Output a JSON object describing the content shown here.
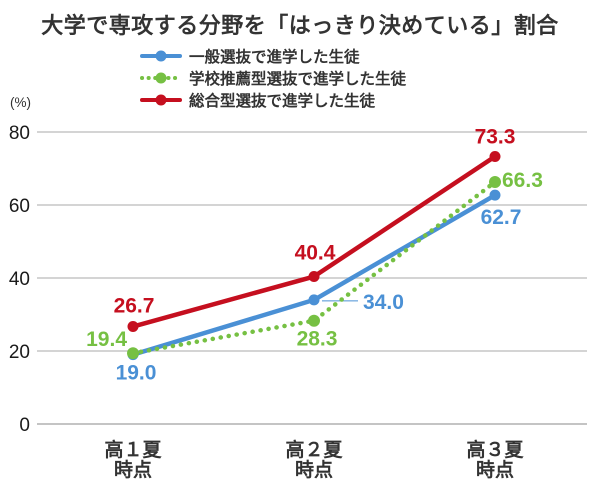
{
  "title": "大学で専攻する分野を「はっきり決めている」割合",
  "y_unit_label": "(%)",
  "chart_data": {
    "type": "line",
    "title": "大学で専攻する分野を「はっきり決めている」割合",
    "categories": [
      [
        "高１夏",
        "時点"
      ],
      [
        "高２夏",
        "時点"
      ],
      [
        "高３夏",
        "時点"
      ]
    ],
    "ylim": [
      0,
      80
    ],
    "yticks": [
      0,
      20,
      40,
      60,
      80
    ],
    "y_unit": "(%)",
    "grid": true,
    "legend_position": "top-center",
    "series": [
      {
        "name": "一般選抜で進学した生徒",
        "color": "#4a90d5",
        "line_style": "solid",
        "values": [
          19.0,
          34.0,
          62.7
        ]
      },
      {
        "name": "学校推薦型選抜で進学した生徒",
        "color": "#76c043",
        "line_style": "dotted",
        "values": [
          19.4,
          28.3,
          66.3
        ]
      },
      {
        "name": "総合型選抜で進学した生徒",
        "color": "#c50f1f",
        "line_style": "solid",
        "values": [
          26.7,
          40.4,
          73.3
        ]
      }
    ],
    "colors": {
      "grid": "#c6c6c6",
      "axis_zero": "#b0b0b0",
      "text": "#333333",
      "tick_text": "#1a1a1a"
    }
  }
}
